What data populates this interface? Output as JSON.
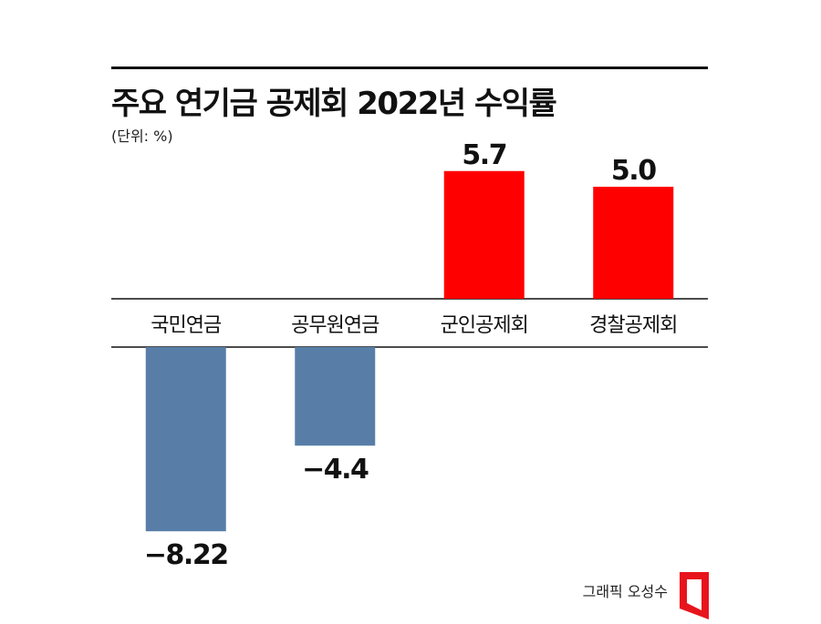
{
  "title": "주요 연기금 공제회 2022년 수익률",
  "unit_note": "(단위: %)",
  "credit": "그래픽 오성수",
  "logo_icon": "red-bracket-logo-icon",
  "chart_data": {
    "type": "bar",
    "categories": [
      "국민연금",
      "공무원연금",
      "군인공제회",
      "경찰공제회"
    ],
    "values": [
      -8.22,
      -4.4,
      5.7,
      5.0
    ],
    "value_labels": [
      "−8.22",
      "−4.4",
      "5.7",
      "5.0"
    ],
    "colors": {
      "positive": "#ff0000",
      "negative": "#587ea8"
    },
    "ylim": [
      -9.4,
      5.7
    ],
    "xlabel": "",
    "ylabel": ""
  }
}
